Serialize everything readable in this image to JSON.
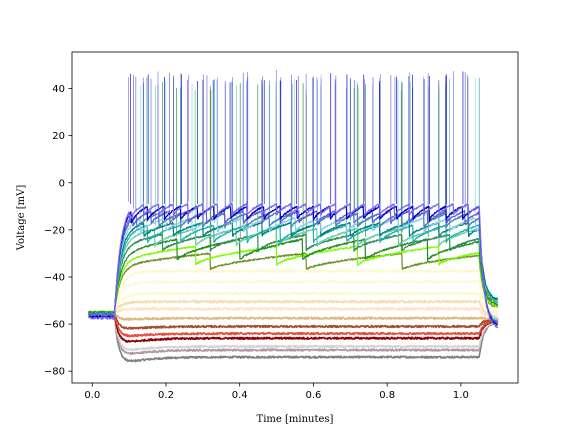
{
  "chart_data": {
    "type": "line",
    "xlabel": "Time [minutes]",
    "ylabel": "Voltage [mV]",
    "xlim": [
      -0.055,
      1.155
    ],
    "ylim": [
      -85,
      55.5
    ],
    "xticks": [
      0.0,
      0.2,
      0.4,
      0.6,
      0.8,
      1.0
    ],
    "xtick_labels": [
      "0.0",
      "0.2",
      "0.4",
      "0.6",
      "0.8",
      "1.0"
    ],
    "yticks": [
      -80,
      -60,
      -40,
      -20,
      0,
      20,
      40
    ],
    "ytick_labels": [
      "−80",
      "−60",
      "−40",
      "−20",
      "0",
      "20",
      "40"
    ],
    "grid": false,
    "stim_on": 0.06,
    "stim_off": 1.05,
    "series": [
      {
        "color": "#808080",
        "rest": -55.5,
        "steady": -74.0,
        "sag": -78.5,
        "type": "hyper",
        "end": -59.0
      },
      {
        "color": "#b09aa0",
        "rest": -55.5,
        "steady": -71.0,
        "sag": -75.0,
        "type": "hyper",
        "end": -59.0
      },
      {
        "color": "#d3d3d3",
        "rest": -55.5,
        "steady": -69.5,
        "sag": -73.0,
        "type": "hyper",
        "end": -59.0
      },
      {
        "color": "#8b0000",
        "rest": -55.5,
        "steady": -66.0,
        "sag": -69.5,
        "type": "hyper",
        "end": -58.5
      },
      {
        "color": "#e74c3c",
        "rest": -55.0,
        "steady": -64.0,
        "sag": -66.5,
        "type": "hyper",
        "end": -58.5
      },
      {
        "color": "#a0522d",
        "rest": -55.0,
        "steady": -61.0,
        "sag": -63.0,
        "type": "hyper",
        "end": -58.0
      },
      {
        "color": "#deb887",
        "rest": -55.0,
        "steady": -57.5,
        "sag": -58.5,
        "type": "hyper",
        "end": -57.5
      },
      {
        "color": "#ffe4c4",
        "rest": -55.0,
        "steady": -53.5,
        "sag": -53.5,
        "type": "sub",
        "end": -57.0
      },
      {
        "color": "#f5deb3",
        "rest": -54.5,
        "steady": -50.5,
        "sag": -50.5,
        "type": "sub",
        "end": -56.5
      },
      {
        "color": "#fffacd",
        "rest": -54.5,
        "steady": -47.0,
        "sag": -47.0,
        "type": "sub",
        "end": -56.0
      },
      {
        "color": "#fff8dc",
        "rest": -54.5,
        "steady": -42.0,
        "sag": -42.0,
        "type": "sub",
        "end": -55.5
      },
      {
        "color": "#fafad2",
        "rest": -54.5,
        "steady": -37.5,
        "sag": -37.5,
        "type": "sub",
        "end": -55.0
      },
      {
        "color": "#6b8e23",
        "rest": -55.0,
        "top": -30.0,
        "trough": -37.0,
        "type": "spike",
        "rate": 0.26,
        "end": -53.0,
        "peak": 41.0
      },
      {
        "color": "#7cfc00",
        "rest": -55.0,
        "top": -27.0,
        "trough": -35.0,
        "type": "spike",
        "rate": 0.22,
        "end": -52.5,
        "peak": 42.0
      },
      {
        "color": "#228b22",
        "rest": -55.0,
        "top": -24.0,
        "trough": -33.0,
        "type": "spike",
        "rate": 0.17,
        "end": -52.0,
        "peak": 43.0
      },
      {
        "color": "#2e8b57",
        "rest": -55.5,
        "top": -22.0,
        "trough": -29.0,
        "type": "spike",
        "rate": 0.13,
        "end": -51.0,
        "peak": 44.0
      },
      {
        "color": "#66cdaa",
        "rest": -55.5,
        "top": -19.5,
        "trough": -27.0,
        "type": "spike",
        "rate": 0.11,
        "end": -50.5,
        "peak": 44.5
      },
      {
        "color": "#20b2aa",
        "rest": -55.5,
        "top": -18.0,
        "trough": -25.5,
        "type": "spike",
        "rate": 0.09,
        "end": -50.0,
        "peak": 45.0
      },
      {
        "color": "#008080",
        "rest": -55.5,
        "top": -17.0,
        "trough": -23.0,
        "type": "spike",
        "rate": 0.08,
        "end": -50.0,
        "peak": 45.5
      },
      {
        "color": "#87ceeb",
        "rest": -56.0,
        "top": -15.0,
        "trough": -21.0,
        "type": "spike",
        "rate": 0.07,
        "end": -59.0,
        "peak": 46.0
      },
      {
        "color": "#4682b4",
        "rest": -56.0,
        "top": -13.0,
        "trough": -19.0,
        "type": "spike",
        "rate": 0.06,
        "end": -60.0,
        "peak": 46.5
      },
      {
        "color": "#6a5acd",
        "rest": -56.5,
        "top": -12.0,
        "trough": -17.5,
        "type": "spike",
        "rate": 0.05,
        "end": -61.0,
        "peak": 47.0
      },
      {
        "color": "#0000cd",
        "rest": -57.0,
        "top": -10.0,
        "trough": -16.0,
        "type": "spike",
        "rate": 0.045,
        "end": -61.0,
        "peak": 47.5
      },
      {
        "color": "#7b68ee",
        "rest": -57.5,
        "top": -9.0,
        "trough": -14.0,
        "type": "spike",
        "rate": 0.04,
        "end": -62.0,
        "peak": 48.0
      }
    ]
  }
}
